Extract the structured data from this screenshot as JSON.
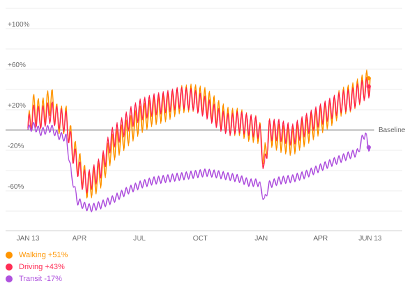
{
  "chart_data": {
    "type": "line",
    "title": "",
    "xlabel": "",
    "ylabel": "",
    "x_ticks": [
      "JAN 13",
      "APR",
      "JUL",
      "OCT",
      "JAN",
      "APR",
      "JUN 13"
    ],
    "y_ticks": [
      "+100%",
      "+60%",
      "+20%",
      "-20%",
      "-60%"
    ],
    "ylim": [
      -80,
      110
    ],
    "grid": true,
    "baseline_label": "Baseline",
    "legend_position": "bottom-left",
    "series": [
      {
        "name": "Walking +51%",
        "color": "#ff9500",
        "values": [
          [
            0,
            0
          ],
          [
            8,
            22
          ],
          [
            20,
            15
          ],
          [
            35,
            30
          ],
          [
            45,
            10
          ],
          [
            58,
            10
          ],
          [
            68,
            -18
          ],
          [
            82,
            -42
          ],
          [
            90,
            -55
          ],
          [
            100,
            -52
          ],
          [
            112,
            -42
          ],
          [
            125,
            -20
          ],
          [
            140,
            -10
          ],
          [
            155,
            0
          ],
          [
            170,
            10
          ],
          [
            190,
            18
          ],
          [
            210,
            22
          ],
          [
            230,
            30
          ],
          [
            250,
            32
          ],
          [
            270,
            28
          ],
          [
            290,
            15
          ],
          [
            305,
            8
          ],
          [
            320,
            8
          ],
          [
            335,
            2
          ],
          [
            350,
            0
          ],
          [
            358,
            -30
          ],
          [
            365,
            -2
          ],
          [
            380,
            -8
          ],
          [
            400,
            -12
          ],
          [
            420,
            -2
          ],
          [
            440,
            8
          ],
          [
            460,
            18
          ],
          [
            475,
            28
          ],
          [
            490,
            32
          ],
          [
            505,
            40
          ],
          [
            515,
            47
          ],
          [
            518,
            51
          ]
        ]
      },
      {
        "name": "Driving +43%",
        "color": "#ff2d55",
        "values": [
          [
            0,
            2
          ],
          [
            8,
            14
          ],
          [
            20,
            12
          ],
          [
            35,
            18
          ],
          [
            45,
            12
          ],
          [
            58,
            8
          ],
          [
            68,
            -22
          ],
          [
            82,
            -48
          ],
          [
            90,
            -52
          ],
          [
            100,
            -45
          ],
          [
            112,
            -35
          ],
          [
            125,
            -10
          ],
          [
            140,
            0
          ],
          [
            155,
            12
          ],
          [
            170,
            20
          ],
          [
            190,
            25
          ],
          [
            210,
            28
          ],
          [
            230,
            32
          ],
          [
            250,
            30
          ],
          [
            270,
            22
          ],
          [
            290,
            10
          ],
          [
            305,
            5
          ],
          [
            320,
            8
          ],
          [
            335,
            5
          ],
          [
            350,
            2
          ],
          [
            358,
            -40
          ],
          [
            365,
            0
          ],
          [
            380,
            0
          ],
          [
            400,
            -5
          ],
          [
            420,
            5
          ],
          [
            440,
            14
          ],
          [
            460,
            22
          ],
          [
            475,
            28
          ],
          [
            490,
            30
          ],
          [
            505,
            38
          ],
          [
            515,
            42
          ],
          [
            518,
            43
          ]
        ]
      },
      {
        "name": "Transit -17%",
        "color": "#af52de",
        "values": [
          [
            0,
            0
          ],
          [
            8,
            4
          ],
          [
            20,
            -2
          ],
          [
            35,
            2
          ],
          [
            45,
            -5
          ],
          [
            58,
            -8
          ],
          [
            66,
            -45
          ],
          [
            75,
            -70
          ],
          [
            85,
            -75
          ],
          [
            95,
            -77
          ],
          [
            110,
            -74
          ],
          [
            130,
            -68
          ],
          [
            150,
            -60
          ],
          [
            170,
            -54
          ],
          [
            190,
            -50
          ],
          [
            210,
            -48
          ],
          [
            230,
            -46
          ],
          [
            250,
            -44
          ],
          [
            270,
            -42
          ],
          [
            290,
            -44
          ],
          [
            305,
            -46
          ],
          [
            320,
            -48
          ],
          [
            335,
            -52
          ],
          [
            350,
            -52
          ],
          [
            358,
            -70
          ],
          [
            365,
            -54
          ],
          [
            380,
            -50
          ],
          [
            400,
            -48
          ],
          [
            420,
            -44
          ],
          [
            440,
            -38
          ],
          [
            460,
            -32
          ],
          [
            475,
            -28
          ],
          [
            490,
            -24
          ],
          [
            500,
            -22
          ],
          [
            505,
            -10
          ],
          [
            511,
            -3
          ],
          [
            515,
            -17
          ],
          [
            518,
            -17
          ]
        ]
      }
    ]
  }
}
